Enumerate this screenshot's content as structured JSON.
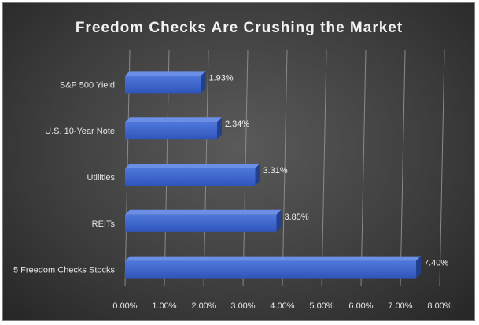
{
  "chart_data": {
    "type": "bar",
    "orientation": "horizontal",
    "title": "Freedom Checks Are Crushing the Market",
    "categories": [
      "S&P 500 Yield",
      "U.S. 10-Year Note",
      "Utilities",
      "REITs",
      "5 Freedom Checks Stocks"
    ],
    "values": [
      1.93,
      2.34,
      3.31,
      3.85,
      7.4
    ],
    "data_labels": [
      "1.93%",
      "2.34%",
      "3.31%",
      "3.85%",
      "7.40%"
    ],
    "x_ticks": [
      "0.00%",
      "1.00%",
      "2.00%",
      "3.00%",
      "4.00%",
      "5.00%",
      "6.00%",
      "7.00%",
      "8.00%"
    ],
    "xlim": [
      0,
      8
    ],
    "xlabel": "",
    "ylabel": "",
    "grid": true,
    "bar_color": "#3a62c9",
    "background": "#3f3f3f"
  }
}
